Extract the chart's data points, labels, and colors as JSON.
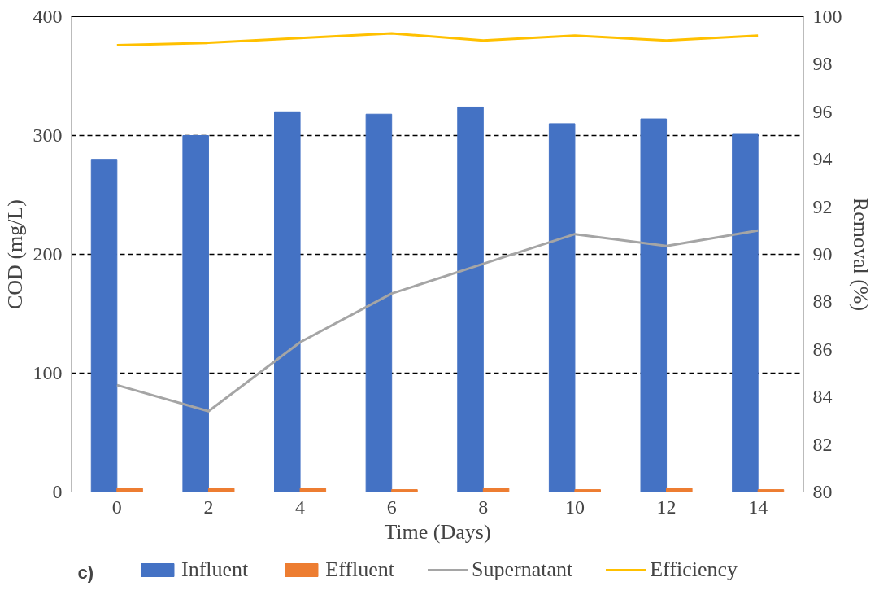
{
  "chart_data": {
    "type": "bar",
    "xlabel": "Time (Days)",
    "ylabel": "COD (mg/L)",
    "y2label": "Removal (%)",
    "categories": [
      "0",
      "2",
      "4",
      "6",
      "8",
      "10",
      "12",
      "14"
    ],
    "series": [
      {
        "name": "Influent",
        "color": "#4472c4",
        "values": [
          280,
          300,
          320,
          318,
          324,
          310,
          314,
          301
        ]
      },
      {
        "name": "Effluent",
        "color": "#ed7d31",
        "values": [
          3,
          3,
          3,
          2,
          3,
          2,
          3,
          2
        ]
      },
      {
        "name": "Supernatant",
        "type": "line",
        "color": "#a5a5a5",
        "values": [
          90,
          68,
          126,
          167,
          192,
          217,
          207,
          220
        ]
      },
      {
        "name": "Efficiency",
        "type": "line",
        "axis": "y2",
        "color": "#ffc000",
        "values": [
          98.8,
          98.9,
          99.1,
          99.3,
          99.0,
          99.2,
          99.0,
          99.2
        ]
      }
    ],
    "ylim": [
      0,
      400
    ],
    "yticks": [
      0,
      100,
      200,
      300,
      400
    ],
    "y2lim": [
      80,
      100
    ],
    "y2ticks": [
      80,
      82,
      84,
      86,
      88,
      90,
      92,
      94,
      96,
      98,
      100
    ],
    "grid": "y",
    "legend": "bottom",
    "annotations": [
      "c)"
    ]
  }
}
